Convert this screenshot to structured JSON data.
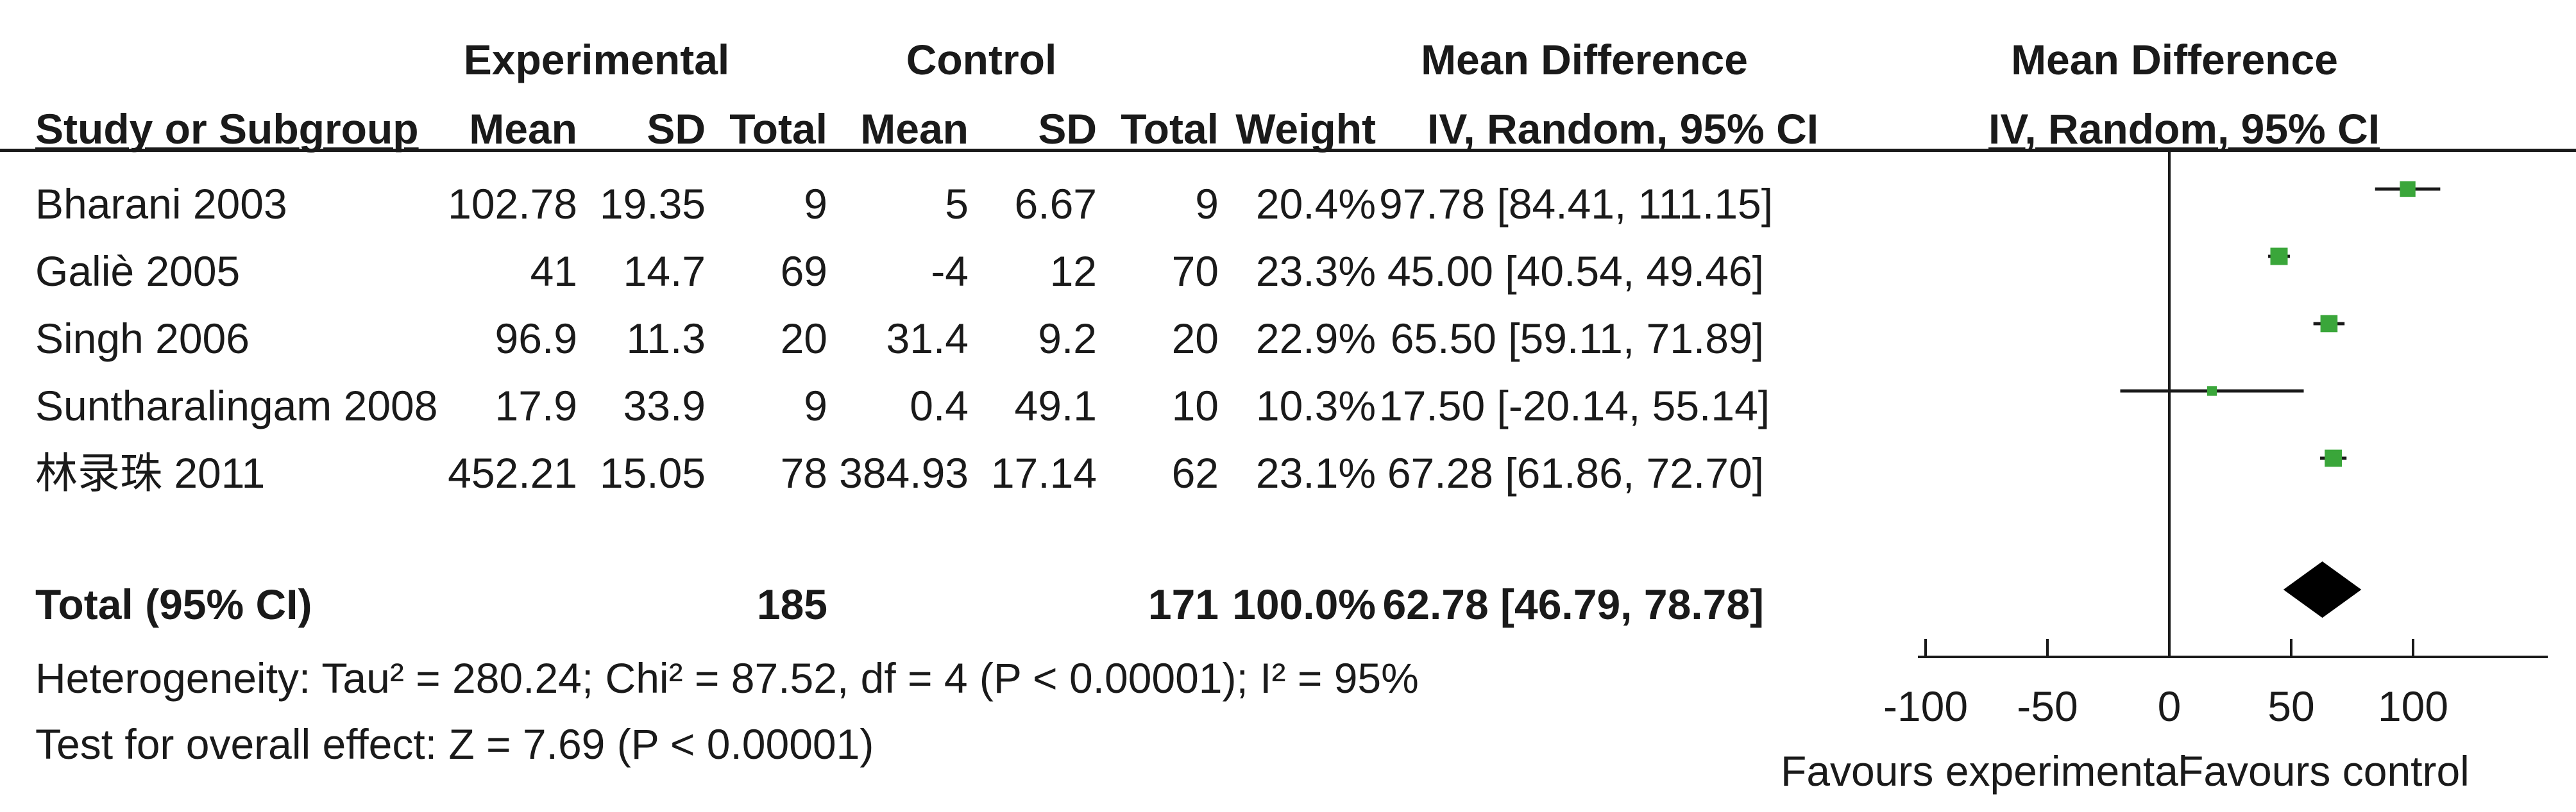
{
  "headers": {
    "group_experimental": "Experimental",
    "group_control": "Control",
    "md_title": "Mean Difference",
    "plot_title": "Mean Difference",
    "study": "Study or Subgroup",
    "mean_exp": "Mean",
    "sd_exp": "SD",
    "total_exp": "Total",
    "mean_ctrl": "Mean",
    "sd_ctrl": "SD",
    "total_ctrl": "Total",
    "weight": "Weight",
    "md_ci": "IV, Random, 95% CI",
    "plot_ci": "IV, Random, 95% CI"
  },
  "colors": {
    "marker": "#3aa63a",
    "diamond": "#000000",
    "line": "#1a1a1a"
  },
  "chart_data": {
    "type": "forest",
    "xlim": [
      -100,
      150
    ],
    "xticks": [
      -100,
      -50,
      0,
      50,
      100
    ],
    "xtick_labels": [
      "-100",
      "-50",
      "0",
      "50",
      "100"
    ],
    "favours_left": "Favours experimental",
    "favours_right": "Favours control",
    "studies": [
      {
        "study": "Bharani 2003",
        "exp_mean": "102.78",
        "exp_sd": "19.35",
        "exp_total": "9",
        "ctrl_mean": "5",
        "ctrl_sd": "6.67",
        "ctrl_total": "9",
        "weight": "20.4%",
        "md_ci": "97.78 [84.41, 111.15]",
        "md": 97.78,
        "ci_low": 84.41,
        "ci_high": 111.15,
        "weight_value": 20.4
      },
      {
        "study": "Galiè 2005",
        "exp_mean": "41",
        "exp_sd": "14.7",
        "exp_total": "69",
        "ctrl_mean": "-4",
        "ctrl_sd": "12",
        "ctrl_total": "70",
        "weight": "23.3%",
        "md_ci": "45.00 [40.54, 49.46]",
        "md": 45.0,
        "ci_low": 40.54,
        "ci_high": 49.46,
        "weight_value": 23.3
      },
      {
        "study": "Singh 2006",
        "exp_mean": "96.9",
        "exp_sd": "11.3",
        "exp_total": "20",
        "ctrl_mean": "31.4",
        "ctrl_sd": "9.2",
        "ctrl_total": "20",
        "weight": "22.9%",
        "md_ci": "65.50 [59.11, 71.89]",
        "md": 65.5,
        "ci_low": 59.11,
        "ci_high": 71.89,
        "weight_value": 22.9
      },
      {
        "study": "Suntharalingam 2008",
        "exp_mean": "17.9",
        "exp_sd": "33.9",
        "exp_total": "9",
        "ctrl_mean": "0.4",
        "ctrl_sd": "49.1",
        "ctrl_total": "10",
        "weight": "10.3%",
        "md_ci": "17.50 [-20.14, 55.14]",
        "md": 17.5,
        "ci_low": -20.14,
        "ci_high": 55.14,
        "weight_value": 10.3
      },
      {
        "study": "林录珠 2011",
        "exp_mean": "452.21",
        "exp_sd": "15.05",
        "exp_total": "78",
        "ctrl_mean": "384.93",
        "ctrl_sd": "17.14",
        "ctrl_total": "62",
        "weight": "23.1%",
        "md_ci": "67.28 [61.86, 72.70]",
        "md": 67.28,
        "ci_low": 61.86,
        "ci_high": 72.7,
        "weight_value": 23.1
      }
    ],
    "total": {
      "label": "Total (95% CI)",
      "exp_total": "185",
      "ctrl_total": "171",
      "weight": "100.0%",
      "md_ci": "62.78 [46.79, 78.78]",
      "md": 62.78,
      "ci_low": 46.79,
      "ci_high": 78.78
    },
    "heterogeneity": "Heterogeneity: Tau² = 280.24; Chi² = 87.52, df = 4 (P < 0.00001); I² = 95%",
    "overall_effect": "Test for overall effect: Z = 7.69 (P < 0.00001)"
  }
}
